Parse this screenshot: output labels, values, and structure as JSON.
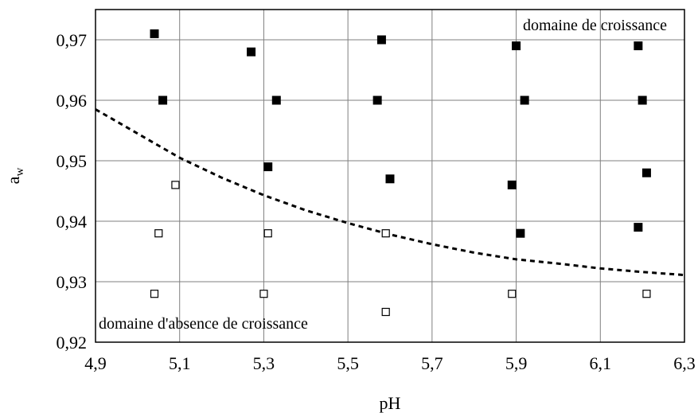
{
  "chart_data": {
    "type": "scatter",
    "title": "",
    "xlabel": "pH",
    "ylabel_main": "a",
    "ylabel_sub": "w",
    "xlim": [
      4.9,
      6.3
    ],
    "ylim": [
      0.92,
      0.975
    ],
    "x_ticks": [
      4.9,
      5.1,
      5.3,
      5.5,
      5.7,
      5.9,
      6.1,
      6.3
    ],
    "x_tick_labels": [
      "4,9",
      "5,1",
      "5,3",
      "5,5",
      "5,7",
      "5,9",
      "6,1",
      "6,3"
    ],
    "y_ticks": [
      0.92,
      0.93,
      0.94,
      0.95,
      0.96,
      0.97
    ],
    "y_tick_labels": [
      "0,92",
      "0,93",
      "0,94",
      "0,95",
      "0,96",
      "0,97"
    ],
    "grid": true,
    "series": [
      {
        "marker": "filled-square",
        "color": "#000000",
        "points": [
          [
            5.04,
            0.971
          ],
          [
            5.06,
            0.96
          ],
          [
            5.27,
            0.968
          ],
          [
            5.33,
            0.96
          ],
          [
            5.31,
            0.949
          ],
          [
            5.58,
            0.97
          ],
          [
            5.57,
            0.96
          ],
          [
            5.6,
            0.947
          ],
          [
            5.9,
            0.969
          ],
          [
            5.92,
            0.96
          ],
          [
            5.89,
            0.946
          ],
          [
            5.91,
            0.938
          ],
          [
            6.19,
            0.969
          ],
          [
            6.2,
            0.96
          ],
          [
            6.21,
            0.948
          ],
          [
            6.19,
            0.939
          ]
        ]
      },
      {
        "marker": "open-square",
        "color": "#000000",
        "points": [
          [
            5.09,
            0.946
          ],
          [
            5.05,
            0.938
          ],
          [
            5.04,
            0.928
          ],
          [
            5.31,
            0.938
          ],
          [
            5.3,
            0.928
          ],
          [
            5.59,
            0.938
          ],
          [
            5.59,
            0.925
          ],
          [
            5.89,
            0.928
          ],
          [
            6.21,
            0.928
          ]
        ]
      }
    ],
    "boundary_curve": {
      "style": "dashed",
      "points": [
        [
          4.9,
          0.9585
        ],
        [
          5.0,
          0.9545
        ],
        [
          5.1,
          0.9505
        ],
        [
          5.2,
          0.9472
        ],
        [
          5.3,
          0.9443
        ],
        [
          5.4,
          0.9418
        ],
        [
          5.5,
          0.9397
        ],
        [
          5.6,
          0.9378
        ],
        [
          5.7,
          0.9362
        ],
        [
          5.8,
          0.9348
        ],
        [
          5.9,
          0.9337
        ],
        [
          6.0,
          0.933
        ],
        [
          6.1,
          0.9322
        ],
        [
          6.2,
          0.9316
        ],
        [
          6.3,
          0.9311
        ]
      ]
    },
    "annotations": {
      "growth": "domaine de croissance",
      "no_growth": "domaine d'absence de croissance"
    }
  }
}
